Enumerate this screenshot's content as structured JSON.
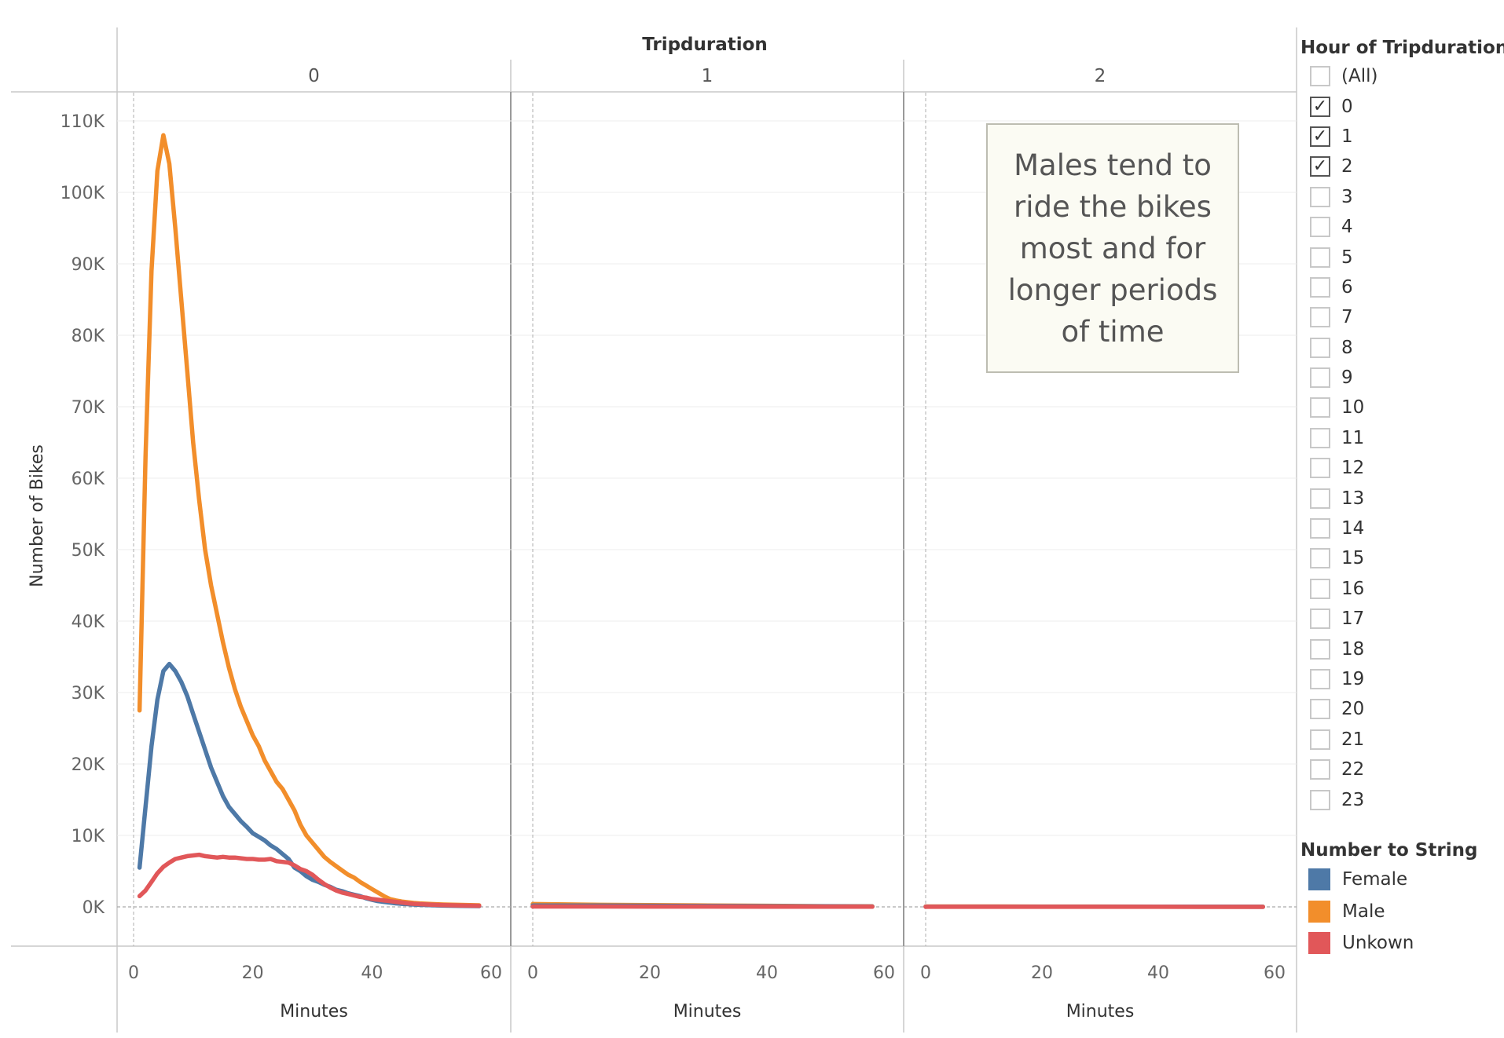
{
  "chart_data": {
    "type": "line",
    "column_header_title": "Tripduration",
    "panels": [
      {
        "label": "0"
      },
      {
        "label": "1"
      },
      {
        "label": "2"
      }
    ],
    "x_label": "Minutes",
    "x_ticks": [
      "0",
      "20",
      "40",
      "60"
    ],
    "xlim": [
      -2,
      60
    ],
    "y_label": "Number of Bikes",
    "y_ticks": [
      "0K",
      "10K",
      "20K",
      "30K",
      "40K",
      "50K",
      "60K",
      "70K",
      "80K",
      "90K",
      "100K",
      "110K"
    ],
    "ylim": [
      -5500,
      117000
    ],
    "grid": true,
    "series": [
      {
        "name": "Male",
        "color": "#f28e2b",
        "panels": [
          {
            "x": [
              1,
              2,
              3,
              4,
              5,
              6,
              7,
              8,
              9,
              10,
              11,
              12,
              13,
              14,
              15,
              16,
              17,
              18,
              19,
              20,
              21,
              22,
              23,
              24,
              25,
              26,
              27,
              28,
              29,
              30,
              31,
              32,
              33,
              34,
              35,
              36,
              37,
              38,
              39,
              40,
              41,
              42,
              43,
              44,
              45,
              46,
              47,
              48,
              50,
              52,
              55,
              58
            ],
            "y": [
              27500,
              63000,
              89000,
              103000,
              108000,
              104000,
              95000,
              85000,
              75000,
              65000,
              57000,
              50000,
              45000,
              41000,
              37000,
              33500,
              30500,
              28000,
              26000,
              24000,
              22500,
              20500,
              19000,
              17500,
              16500,
              15000,
              13500,
              11500,
              10000,
              9000,
              8000,
              7000,
              6300,
              5700,
              5100,
              4500,
              4100,
              3500,
              3000,
              2500,
              2000,
              1500,
              1100,
              900,
              750,
              650,
              550,
              480,
              400,
              330,
              280,
              220
            ]
          },
          {
            "x": [
              0,
              10,
              20,
              30,
              40,
              50,
              58
            ],
            "y": [
              400,
              300,
              250,
              200,
              150,
              100,
              80
            ]
          },
          {
            "x": [
              0,
              10,
              20,
              30,
              40,
              50,
              58
            ],
            "y": [
              60,
              50,
              45,
              40,
              35,
              30,
              25
            ]
          }
        ]
      },
      {
        "name": "Female",
        "color": "#4e79a7",
        "panels": [
          {
            "x": [
              1,
              2,
              3,
              4,
              5,
              6,
              7,
              8,
              9,
              10,
              11,
              12,
              13,
              14,
              15,
              16,
              17,
              18,
              19,
              20,
              21,
              22,
              23,
              24,
              25,
              26,
              27,
              28,
              29,
              30,
              31,
              32,
              33,
              34,
              35,
              36,
              37,
              38,
              39,
              40,
              41,
              42,
              43,
              44,
              45,
              46,
              47,
              48,
              50,
              52,
              55,
              58
            ],
            "y": [
              5500,
              14000,
              22500,
              29000,
              33000,
              34000,
              33000,
              31500,
              29500,
              27000,
              24500,
              22000,
              19500,
              17500,
              15500,
              14000,
              13000,
              12000,
              11200,
              10300,
              9800,
              9300,
              8600,
              8100,
              7400,
              6700,
              5500,
              5000,
              4300,
              3800,
              3500,
              3100,
              2800,
              2400,
              2200,
              1900,
              1700,
              1500,
              1200,
              1000,
              800,
              700,
              600,
              500,
              430,
              380,
              330,
              290,
              230,
              180,
              140,
              110
            ]
          },
          {
            "x": [
              0,
              10,
              20,
              30,
              40,
              50,
              58
            ],
            "y": [
              200,
              180,
              150,
              120,
              100,
              80,
              60
            ]
          },
          {
            "x": [
              0,
              10,
              20,
              30,
              40,
              50,
              58
            ],
            "y": [
              30,
              28,
              25,
              22,
              20,
              18,
              15
            ]
          }
        ]
      },
      {
        "name": "Unkown",
        "color": "#e15759",
        "panels": [
          {
            "x": [
              1,
              2,
              3,
              4,
              5,
              6,
              7,
              8,
              9,
              10,
              11,
              12,
              13,
              14,
              15,
              16,
              17,
              18,
              19,
              20,
              21,
              22,
              23,
              24,
              25,
              26,
              27,
              28,
              29,
              30,
              31,
              32,
              33,
              34,
              35,
              36,
              37,
              38,
              39,
              40,
              41,
              42,
              43,
              44,
              45,
              46,
              47,
              48,
              50,
              52,
              55,
              58
            ],
            "y": [
              1500,
              2300,
              3500,
              4700,
              5600,
              6200,
              6700,
              6900,
              7100,
              7200,
              7300,
              7100,
              7000,
              6900,
              7000,
              6900,
              6900,
              6800,
              6700,
              6700,
              6600,
              6600,
              6700,
              6400,
              6300,
              6200,
              5800,
              5300,
              5000,
              4500,
              3800,
              3200,
              2700,
              2300,
              2000,
              1800,
              1600,
              1400,
              1300,
              1100,
              1000,
              900,
              800,
              700,
              600,
              500,
              430,
              380,
              300,
              240,
              190,
              150
            ]
          },
          {
            "x": [
              0,
              10,
              20,
              30,
              40,
              50,
              58
            ],
            "y": [
              60,
              50,
              45,
              40,
              35,
              30,
              25
            ]
          },
          {
            "x": [
              0,
              10,
              20,
              30,
              40,
              50,
              58
            ],
            "y": [
              10,
              9,
              8,
              7,
              6,
              5,
              5
            ]
          }
        ]
      }
    ]
  },
  "annotation": {
    "text": "Males tend to ride the bikes most and for longer periods of time"
  },
  "filter": {
    "title": "Hour of Tripduration",
    "items": [
      {
        "label": "(All)",
        "checked": false
      },
      {
        "label": "0",
        "checked": true
      },
      {
        "label": "1",
        "checked": true
      },
      {
        "label": "2",
        "checked": true
      },
      {
        "label": "3",
        "checked": false
      },
      {
        "label": "4",
        "checked": false
      },
      {
        "label": "5",
        "checked": false
      },
      {
        "label": "6",
        "checked": false
      },
      {
        "label": "7",
        "checked": false
      },
      {
        "label": "8",
        "checked": false
      },
      {
        "label": "9",
        "checked": false
      },
      {
        "label": "10",
        "checked": false
      },
      {
        "label": "11",
        "checked": false
      },
      {
        "label": "12",
        "checked": false
      },
      {
        "label": "13",
        "checked": false
      },
      {
        "label": "14",
        "checked": false
      },
      {
        "label": "15",
        "checked": false
      },
      {
        "label": "16",
        "checked": false
      },
      {
        "label": "17",
        "checked": false
      },
      {
        "label": "18",
        "checked": false
      },
      {
        "label": "19",
        "checked": false
      },
      {
        "label": "20",
        "checked": false
      },
      {
        "label": "21",
        "checked": false
      },
      {
        "label": "22",
        "checked": false
      },
      {
        "label": "23",
        "checked": false
      }
    ],
    "check_glyph": "✓"
  },
  "legend": {
    "title": "Number to String",
    "items": [
      {
        "label": "Female",
        "color": "#4e79a7"
      },
      {
        "label": "Male",
        "color": "#f28e2b"
      },
      {
        "label": "Unkown",
        "color": "#e15759"
      }
    ]
  }
}
